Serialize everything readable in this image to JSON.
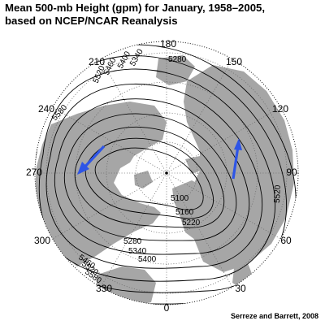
{
  "title": {
    "line1": "Mean 500-mb Height (gpm) for January, 1958–2005,",
    "line2": "based on NCEP/NCAR Reanalysis"
  },
  "credit": "Serreze and Barrett, 2008",
  "projection": "north-polar stereographic",
  "colors": {
    "land": "#a6a6a6",
    "contour": "#000000",
    "grid": "#6a6a6a",
    "arrow": "#2e55e6"
  },
  "longitude_labels": {
    "l0": "0",
    "l30": "30",
    "l60": "60",
    "l90": "90",
    "l120": "120",
    "l150": "150",
    "l180": "180",
    "l210": "210",
    "l240": "240",
    "l270": "270",
    "l300": "300",
    "l330": "330"
  },
  "contour_labels": {
    "c5100": "5100",
    "c5160": "5160",
    "c5220": "5220",
    "c5280a": "5280",
    "c5280b": "5280",
    "c5340a": "5340",
    "c5340b": "5340",
    "c5400a": "5400",
    "c5400b": "5400",
    "c5460a": "5460",
    "c5460b": "5460",
    "c5520a": "5520",
    "c5520b": "5520",
    "c5520c": "5520",
    "c5580a": "5580",
    "c5580b": "5580"
  },
  "wind_arrows": [
    {
      "name": "east-asia-trough-arrow",
      "direction": "southwestward"
    },
    {
      "name": "north-america-trough-arrow",
      "direction": "northward"
    }
  ]
}
